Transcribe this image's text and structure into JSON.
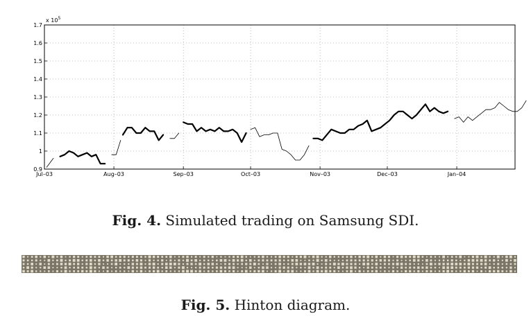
{
  "figure4": {
    "caption_label": "Fig. 4.",
    "caption_text": " Simulated trading on Samsung SDI.",
    "chart_data": {
      "type": "line",
      "title": "",
      "xlabel": "",
      "ylabel": "",
      "y_multiplier_label": "x 10",
      "y_multiplier_exponent": "5",
      "ylim": [
        0.9,
        1.7
      ],
      "xlim": [
        0,
        210
      ],
      "grid": true,
      "x_ticks": [
        {
          "label": "Jul–03",
          "x": 0
        },
        {
          "label": "Aug–03",
          "x": 31
        },
        {
          "label": "Sep–03",
          "x": 62
        },
        {
          "label": "Oct–03",
          "x": 92
        },
        {
          "label": "Nov–03",
          "x": 123
        },
        {
          "label": "Dec–03",
          "x": 153
        },
        {
          "label": "Jan–04",
          "x": 184
        }
      ],
      "y_ticks": [
        {
          "label": "0.9",
          "v": 0.9
        },
        {
          "label": "1",
          "v": 1.0
        },
        {
          "label": "1.1",
          "v": 1.1
        },
        {
          "label": "1.2",
          "v": 1.2
        },
        {
          "label": "1.3",
          "v": 1.3
        },
        {
          "label": "1.4",
          "v": 1.4
        },
        {
          "label": "1.5",
          "v": 1.5
        },
        {
          "label": "1.6",
          "v": 1.6
        },
        {
          "label": "1.7",
          "v": 1.7
        }
      ],
      "series": [
        {
          "style": "thin",
          "points": [
            [
              1,
              0.91
            ],
            [
              4,
              0.96
            ]
          ]
        },
        {
          "style": "thick",
          "points": [
            [
              7,
              0.97
            ],
            [
              9,
              0.98
            ],
            [
              11,
              1.0
            ],
            [
              13,
              0.99
            ],
            [
              15,
              0.97
            ],
            [
              17,
              0.98
            ],
            [
              19,
              0.99
            ],
            [
              21,
              0.97
            ],
            [
              23,
              0.98
            ],
            [
              25,
              0.93
            ],
            [
              27,
              0.93
            ]
          ]
        },
        {
          "style": "thin",
          "points": [
            [
              30,
              0.98
            ],
            [
              32,
              0.98
            ],
            [
              34,
              1.06
            ]
          ]
        },
        {
          "style": "thick",
          "points": [
            [
              35,
              1.09
            ],
            [
              37,
              1.13
            ],
            [
              39,
              1.13
            ],
            [
              41,
              1.1
            ],
            [
              43,
              1.1
            ],
            [
              45,
              1.13
            ],
            [
              47,
              1.11
            ],
            [
              49,
              1.11
            ],
            [
              51,
              1.06
            ],
            [
              53,
              1.09
            ]
          ]
        },
        {
          "style": "thin",
          "points": [
            [
              56,
              1.07
            ],
            [
              58,
              1.07
            ],
            [
              60,
              1.1
            ]
          ]
        },
        {
          "style": "thick",
          "points": [
            [
              62,
              1.16
            ],
            [
              64,
              1.15
            ],
            [
              66,
              1.15
            ],
            [
              68,
              1.11
            ],
            [
              70,
              1.13
            ],
            [
              72,
              1.11
            ],
            [
              74,
              1.12
            ],
            [
              76,
              1.11
            ],
            [
              78,
              1.13
            ],
            [
              80,
              1.11
            ],
            [
              82,
              1.11
            ],
            [
              84,
              1.12
            ],
            [
              86,
              1.1
            ],
            [
              88,
              1.05
            ],
            [
              90,
              1.1
            ]
          ]
        },
        {
          "style": "thin",
          "points": [
            [
              92,
              1.12
            ],
            [
              94,
              1.13
            ],
            [
              96,
              1.08
            ],
            [
              98,
              1.09
            ],
            [
              100,
              1.09
            ],
            [
              102,
              1.1
            ],
            [
              104,
              1.1
            ],
            [
              106,
              1.01
            ],
            [
              108,
              1.0
            ],
            [
              110,
              0.98
            ],
            [
              112,
              0.95
            ],
            [
              114,
              0.95
            ],
            [
              116,
              0.98
            ],
            [
              118,
              1.03
            ]
          ]
        },
        {
          "style": "thick",
          "points": [
            [
              120,
              1.07
            ],
            [
              122,
              1.07
            ],
            [
              124,
              1.06
            ],
            [
              126,
              1.09
            ],
            [
              128,
              1.12
            ],
            [
              130,
              1.11
            ],
            [
              132,
              1.1
            ],
            [
              134,
              1.1
            ],
            [
              136,
              1.12
            ],
            [
              138,
              1.12
            ],
            [
              140,
              1.14
            ],
            [
              142,
              1.15
            ],
            [
              144,
              1.17
            ],
            [
              146,
              1.11
            ],
            [
              148,
              1.12
            ],
            [
              150,
              1.13
            ],
            [
              152,
              1.15
            ],
            [
              154,
              1.17
            ],
            [
              156,
              1.2
            ],
            [
              158,
              1.22
            ],
            [
              160,
              1.22
            ],
            [
              162,
              1.2
            ],
            [
              164,
              1.18
            ],
            [
              166,
              1.2
            ],
            [
              168,
              1.23
            ],
            [
              170,
              1.26
            ],
            [
              172,
              1.22
            ],
            [
              174,
              1.24
            ],
            [
              176,
              1.22
            ],
            [
              178,
              1.21
            ],
            [
              180,
              1.22
            ]
          ]
        },
        {
          "style": "thin",
          "points": [
            [
              183,
              1.18
            ],
            [
              185,
              1.19
            ],
            [
              187,
              1.16
            ],
            [
              189,
              1.19
            ],
            [
              191,
              1.17
            ],
            [
              193,
              1.19
            ],
            [
              195,
              1.21
            ],
            [
              197,
              1.23
            ],
            [
              199,
              1.23
            ],
            [
              201,
              1.24
            ],
            [
              203,
              1.27
            ],
            [
              205,
              1.25
            ],
            [
              207,
              1.23
            ],
            [
              209,
              1.22
            ],
            [
              211,
              1.22
            ],
            [
              213,
              1.24
            ],
            [
              215,
              1.28
            ]
          ]
        }
      ]
    }
  },
  "figure5": {
    "caption_label": "Fig. 5.",
    "caption_text": " Hinton diagram.",
    "hinton": {
      "rows": 5,
      "cols": 118,
      "bg_color": "#7a7566",
      "cell_color": "#e2dccb"
    }
  }
}
